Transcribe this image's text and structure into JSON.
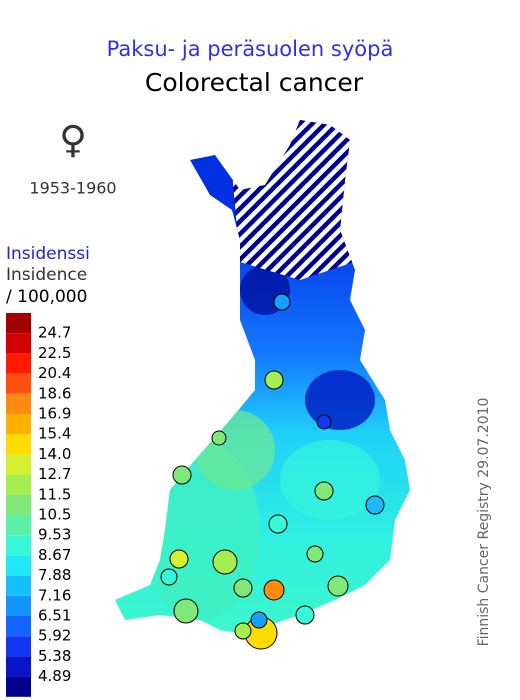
{
  "header": {
    "title_fi": "Paksu- ja peräsuolen syöpä",
    "title_en": "Colorectal cancer",
    "symbol": "♀",
    "period": "1953-1960"
  },
  "legend": {
    "title_fi": "Insidenssi",
    "title_en": "Insidence",
    "unit": "/ 100,000",
    "labels": [
      "24.7",
      "22.5",
      "20.4",
      "18.6",
      "16.9",
      "15.4",
      "14.0",
      "12.7",
      "11.5",
      "10.5",
      "9.53",
      "8.67",
      "7.88",
      "7.16",
      "6.51",
      "5.92",
      "5.38",
      "4.89"
    ],
    "colors": [
      "#a00000",
      "#d40000",
      "#ff1a00",
      "#ff5010",
      "#ff8a10",
      "#ffb000",
      "#ffdc00",
      "#d4f030",
      "#a6ee50",
      "#7fe878",
      "#5cf0a6",
      "#38f8d8",
      "#20e8f8",
      "#14c0ff",
      "#1496ff",
      "#1464ff",
      "#1438f0",
      "#0a14c8",
      "#00008c"
    ]
  },
  "credit": "Finnish Cancer Registry 29.07.2010"
}
